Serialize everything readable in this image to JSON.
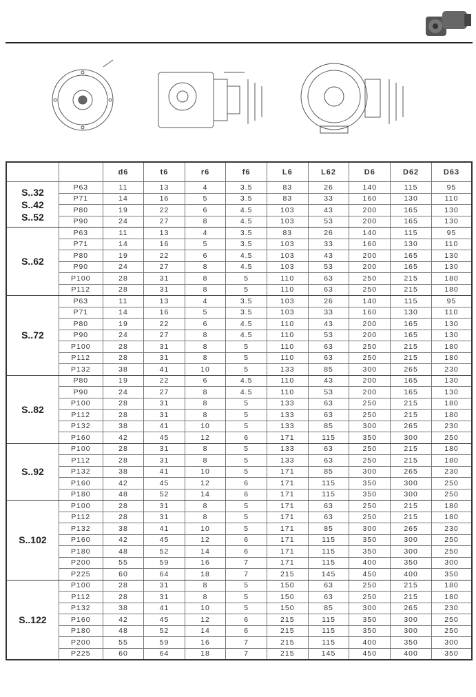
{
  "columns": [
    "",
    "",
    "d6",
    "t6",
    "r6",
    "f6",
    "L6",
    "L62",
    "D6",
    "D62",
    "D63"
  ],
  "groups": [
    {
      "label": [
        "S..32",
        "S..42",
        "S..52"
      ],
      "rows": [
        [
          "P63",
          "11",
          "13",
          "4",
          "3.5",
          "83",
          "26",
          "140",
          "115",
          "95"
        ],
        [
          "P71",
          "14",
          "16",
          "5",
          "3.5",
          "83",
          "33",
          "160",
          "130",
          "110"
        ],
        [
          "P80",
          "19",
          "22",
          "6",
          "4.5",
          "103",
          "43",
          "200",
          "165",
          "130"
        ],
        [
          "P90",
          "24",
          "27",
          "8",
          "4.5",
          "103",
          "53",
          "200",
          "165",
          "130"
        ]
      ]
    },
    {
      "label": [
        "S..62"
      ],
      "rows": [
        [
          "P63",
          "11",
          "13",
          "4",
          "3.5",
          "83",
          "26",
          "140",
          "115",
          "95"
        ],
        [
          "P71",
          "14",
          "16",
          "5",
          "3.5",
          "103",
          "33",
          "160",
          "130",
          "110"
        ],
        [
          "P80",
          "19",
          "22",
          "6",
          "4.5",
          "103",
          "43",
          "200",
          "165",
          "130"
        ],
        [
          "P90",
          "24",
          "27",
          "8",
          "4.5",
          "103",
          "53",
          "200",
          "165",
          "130"
        ],
        [
          "P100",
          "28",
          "31",
          "8",
          "5",
          "110",
          "63",
          "250",
          "215",
          "180"
        ],
        [
          "P112",
          "28",
          "31",
          "8",
          "5",
          "110",
          "63",
          "250",
          "215",
          "180"
        ]
      ]
    },
    {
      "label": [
        "S..72"
      ],
      "rows": [
        [
          "P63",
          "11",
          "13",
          "4",
          "3.5",
          "103",
          "26",
          "140",
          "115",
          "95"
        ],
        [
          "P71",
          "14",
          "16",
          "5",
          "3.5",
          "103",
          "33",
          "160",
          "130",
          "110"
        ],
        [
          "P80",
          "19",
          "22",
          "6",
          "4.5",
          "110",
          "43",
          "200",
          "165",
          "130"
        ],
        [
          "P90",
          "24",
          "27",
          "8",
          "4.5",
          "110",
          "53",
          "200",
          "165",
          "130"
        ],
        [
          "P100",
          "28",
          "31",
          "8",
          "5",
          "110",
          "63",
          "250",
          "215",
          "180"
        ],
        [
          "P112",
          "28",
          "31",
          "8",
          "5",
          "110",
          "63",
          "250",
          "215",
          "180"
        ],
        [
          "P132",
          "38",
          "41",
          "10",
          "5",
          "133",
          "85",
          "300",
          "265",
          "230"
        ]
      ]
    },
    {
      "label": [
        "S..82"
      ],
      "rows": [
        [
          "P80",
          "19",
          "22",
          "6",
          "4.5",
          "110",
          "43",
          "200",
          "165",
          "130"
        ],
        [
          "P90",
          "24",
          "27",
          "8",
          "4.5",
          "110",
          "53",
          "200",
          "165",
          "130"
        ],
        [
          "P100",
          "28",
          "31",
          "8",
          "5",
          "133",
          "63",
          "250",
          "215",
          "180"
        ],
        [
          "P112",
          "28",
          "31",
          "8",
          "5",
          "133",
          "63",
          "250",
          "215",
          "180"
        ],
        [
          "P132",
          "38",
          "41",
          "10",
          "5",
          "133",
          "85",
          "300",
          "265",
          "230"
        ],
        [
          "P160",
          "42",
          "45",
          "12",
          "6",
          "171",
          "115",
          "350",
          "300",
          "250"
        ]
      ]
    },
    {
      "label": [
        "S..92"
      ],
      "rows": [
        [
          "P100",
          "28",
          "31",
          "8",
          "5",
          "133",
          "63",
          "250",
          "215",
          "180"
        ],
        [
          "P112",
          "28",
          "31",
          "8",
          "5",
          "133",
          "63",
          "250",
          "215",
          "180"
        ],
        [
          "P132",
          "38",
          "41",
          "10",
          "5",
          "171",
          "85",
          "300",
          "265",
          "230"
        ],
        [
          "P160",
          "42",
          "45",
          "12",
          "6",
          "171",
          "115",
          "350",
          "300",
          "250"
        ],
        [
          "P180",
          "48",
          "52",
          "14",
          "6",
          "171",
          "115",
          "350",
          "300",
          "250"
        ]
      ]
    },
    {
      "label": [
        "S..102"
      ],
      "rows": [
        [
          "P100",
          "28",
          "31",
          "8",
          "5",
          "171",
          "63",
          "250",
          "215",
          "180"
        ],
        [
          "P112",
          "28",
          "31",
          "8",
          "5",
          "171",
          "63",
          "250",
          "215",
          "180"
        ],
        [
          "P132",
          "38",
          "41",
          "10",
          "5",
          "171",
          "85",
          "300",
          "265",
          "230"
        ],
        [
          "P160",
          "42",
          "45",
          "12",
          "6",
          "171",
          "115",
          "350",
          "300",
          "250"
        ],
        [
          "P180",
          "48",
          "52",
          "14",
          "6",
          "171",
          "115",
          "350",
          "300",
          "250"
        ],
        [
          "P200",
          "55",
          "59",
          "16",
          "7",
          "171",
          "115",
          "400",
          "350",
          "300"
        ],
        [
          "P225",
          "60",
          "64",
          "18",
          "7",
          "215",
          "145",
          "450",
          "400",
          "350"
        ]
      ]
    },
    {
      "label": [
        "S..122"
      ],
      "rows": [
        [
          "P100",
          "28",
          "31",
          "8",
          "5",
          "150",
          "63",
          "250",
          "215",
          "180"
        ],
        [
          "P112",
          "28",
          "31",
          "8",
          "5",
          "150",
          "63",
          "250",
          "215",
          "180"
        ],
        [
          "P132",
          "38",
          "41",
          "10",
          "5",
          "150",
          "85",
          "300",
          "265",
          "230"
        ],
        [
          "P160",
          "42",
          "45",
          "12",
          "6",
          "215",
          "115",
          "350",
          "300",
          "250"
        ],
        [
          "P180",
          "48",
          "52",
          "14",
          "6",
          "215",
          "115",
          "350",
          "300",
          "250"
        ],
        [
          "P200",
          "55",
          "59",
          "16",
          "7",
          "215",
          "115",
          "400",
          "350",
          "300"
        ],
        [
          "P225",
          "60",
          "64",
          "18",
          "7",
          "215",
          "145",
          "450",
          "400",
          "350"
        ]
      ]
    }
  ]
}
